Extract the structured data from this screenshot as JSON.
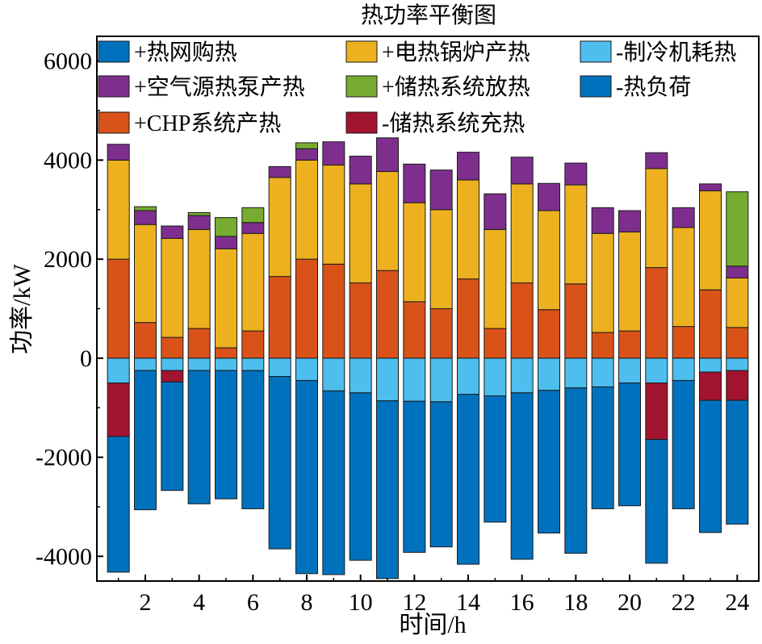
{
  "chart_data": {
    "type": "bar",
    "stacked": true,
    "title": "热功率平衡图",
    "xlabel": "时间/h",
    "ylabel": "功率/kW",
    "ylim": [
      -4500,
      6500
    ],
    "xlim": [
      0.2,
      24.8
    ],
    "yticks": [
      -4000,
      -2000,
      0,
      2000,
      4000,
      6000
    ],
    "yticklabels": [
      "-4000",
      "-2000",
      "0",
      "2000",
      "4000",
      "6000"
    ],
    "xticks": [
      2,
      4,
      6,
      8,
      10,
      12,
      14,
      16,
      18,
      20,
      22,
      24
    ],
    "xticklabels": [
      "2",
      "4",
      "6",
      "8",
      "10",
      "12",
      "14",
      "16",
      "18",
      "20",
      "22",
      "24"
    ],
    "categories": [
      1,
      2,
      3,
      4,
      5,
      6,
      7,
      8,
      9,
      10,
      11,
      12,
      13,
      14,
      15,
      16,
      17,
      18,
      19,
      20,
      21,
      22,
      23,
      24
    ],
    "legend_position": "top",
    "legend_columns": 3,
    "legend": [
      "+热网购热",
      "+电热锅炉产热",
      "-制冷机耗热",
      "+空气源热泵产热",
      "+储热系统放热",
      "-热负荷",
      "+CHP系统产热",
      "-储热系统充热"
    ],
    "series": [
      {
        "name": "+热网购热",
        "color": "#0072BD",
        "side": "positive",
        "values": [
          0,
          0,
          0,
          0,
          0,
          0,
          0,
          0,
          0,
          0,
          0,
          0,
          0,
          0,
          0,
          0,
          0,
          0,
          0,
          0,
          0,
          0,
          0,
          0
        ]
      },
      {
        "name": "+CHP系统产热",
        "color": "#D95319",
        "side": "positive",
        "values": [
          2000,
          720,
          420,
          600,
          210,
          550,
          1650,
          2000,
          1900,
          1520,
          1770,
          1140,
          1000,
          1600,
          600,
          1520,
          980,
          1500,
          520,
          550,
          1830,
          640,
          1380,
          620
        ]
      },
      {
        "name": "+电热锅炉产热",
        "color": "#EDB120",
        "side": "positive",
        "values": [
          2000,
          1980,
          2000,
          2000,
          2000,
          1970,
          2000,
          2000,
          2000,
          2000,
          2000,
          2000,
          2000,
          2000,
          2000,
          2000,
          2000,
          2000,
          2000,
          2000,
          2000,
          2000,
          2000,
          1000
        ]
      },
      {
        "name": "+空气源热泵产热",
        "color": "#7E2F8E",
        "side": "positive",
        "values": [
          320,
          280,
          250,
          280,
          250,
          220,
          220,
          230,
          470,
          560,
          680,
          780,
          800,
          560,
          720,
          540,
          550,
          440,
          520,
          430,
          320,
          400,
          140,
          240
        ]
      },
      {
        "name": "+储热系统放热",
        "color": "#77AC30",
        "side": "positive",
        "values": [
          0,
          80,
          0,
          60,
          380,
          300,
          0,
          120,
          0,
          0,
          0,
          0,
          0,
          0,
          0,
          0,
          0,
          0,
          0,
          0,
          0,
          0,
          0,
          1500
        ]
      },
      {
        "name": "-制冷机耗热",
        "color": "#4DBEEE",
        "side": "negative",
        "values": [
          -500,
          -250,
          -250,
          -250,
          -250,
          -250,
          -370,
          -450,
          -660,
          -700,
          -860,
          -870,
          -880,
          -730,
          -760,
          -700,
          -650,
          -600,
          -580,
          -500,
          -500,
          -450,
          -280,
          -250
        ]
      },
      {
        "name": "-储热系统充热",
        "color": "#A2142F",
        "side": "negative",
        "values": [
          -1080,
          0,
          -230,
          0,
          0,
          0,
          0,
          0,
          0,
          0,
          0,
          0,
          0,
          0,
          0,
          0,
          0,
          0,
          0,
          0,
          -1140,
          0,
          -570,
          -600
        ]
      },
      {
        "name": "-热负荷",
        "color": "#0072BD",
        "side": "negative",
        "values": [
          -2740,
          -2810,
          -2190,
          -2690,
          -2590,
          -2790,
          -3480,
          -3900,
          -3710,
          -3380,
          -3590,
          -3050,
          -2930,
          -3430,
          -2550,
          -3360,
          -2880,
          -3340,
          -2460,
          -2480,
          -2500,
          -2590,
          -2670,
          -2500
        ]
      }
    ]
  },
  "colors": {
    "background": "#ffffff",
    "axis": "#000000",
    "bar_outline": "#1a1a1a"
  }
}
